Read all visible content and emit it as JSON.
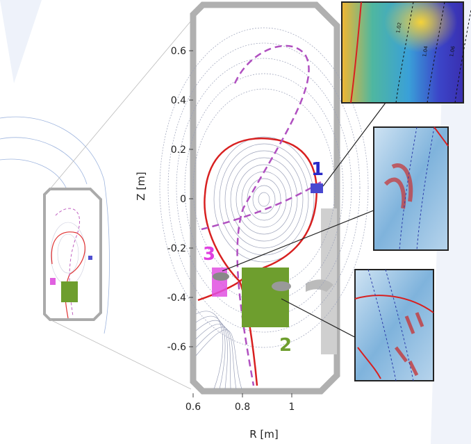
{
  "axes": {
    "xlabel": "R [m]",
    "ylabel": "Z [m]",
    "xticks": [
      0.6,
      0.8,
      1
    ],
    "yticks": [
      0.6,
      0.4,
      0.2,
      0,
      -0.2,
      -0.4,
      -0.6
    ]
  },
  "regions": [
    {
      "label": "1"
    },
    {
      "label": "2"
    },
    {
      "label": "3"
    }
  ],
  "insets": [
    {
      "contours": [
        "1.02",
        "1.04",
        "1.06"
      ]
    }
  ]
}
